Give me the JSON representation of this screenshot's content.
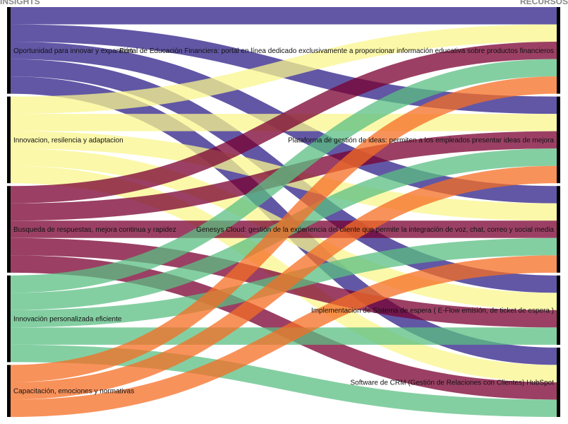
{
  "chart_data": {
    "type": "sankey",
    "headers": {
      "left": "INSIGHTS",
      "right": "RECURSOS"
    },
    "left_nodes": [
      {
        "name": "Oportunidad para innovar y expansión"
      },
      {
        "name": "Innovacion, resilencia y adaptacion"
      },
      {
        "name": "Busqueda de respuestas, mejora continua y rapidez"
      },
      {
        "name": "Innovación personalizada eficiente"
      },
      {
        "name": "Capacitación, emociones y normativas"
      }
    ],
    "right_nodes": [
      {
        "name": "Portal de Educación Financiera: portal en línea dedicado exclusivamente a proporcionar información educativa sobre productos financieros"
      },
      {
        "name": "Plataforma de gestión de ideas: permiten a los empleados presentar ideas de mejora"
      },
      {
        "name": "Genesys Cloud: gestión de la experiencia del cliente que permite la integración de voz, chat, correo y social media"
      },
      {
        "name": "Implementacion de Sistema de espera ( E-Flow emisión, de ticket de espera )"
      },
      {
        "name": "Software de CRM (Gestión de Relaciones con Clientes) HubSpot"
      }
    ],
    "links": [
      {
        "source": 0,
        "target": 0,
        "value": 1
      },
      {
        "source": 0,
        "target": 1,
        "value": 1
      },
      {
        "source": 0,
        "target": 2,
        "value": 1
      },
      {
        "source": 0,
        "target": 3,
        "value": 1
      },
      {
        "source": 0,
        "target": 4,
        "value": 1
      },
      {
        "source": 1,
        "target": 0,
        "value": 1
      },
      {
        "source": 1,
        "target": 1,
        "value": 1
      },
      {
        "source": 1,
        "target": 2,
        "value": 1
      },
      {
        "source": 1,
        "target": 3,
        "value": 1
      },
      {
        "source": 1,
        "target": 4,
        "value": 1
      },
      {
        "source": 2,
        "target": 0,
        "value": 1
      },
      {
        "source": 2,
        "target": 1,
        "value": 1
      },
      {
        "source": 2,
        "target": 2,
        "value": 1
      },
      {
        "source": 2,
        "target": 3,
        "value": 1
      },
      {
        "source": 2,
        "target": 4,
        "value": 1
      },
      {
        "source": 3,
        "target": 0,
        "value": 1
      },
      {
        "source": 3,
        "target": 1,
        "value": 1
      },
      {
        "source": 3,
        "target": 2,
        "value": 1
      },
      {
        "source": 3,
        "target": 3,
        "value": 1
      },
      {
        "source": 3,
        "target": 4,
        "value": 1
      },
      {
        "source": 4,
        "target": 0,
        "value": 1
      },
      {
        "source": 4,
        "target": 1,
        "value": 1
      },
      {
        "source": 4,
        "target": 2,
        "value": 1
      }
    ],
    "colors": [
      "#2e1f87",
      "#f9f58d",
      "#7a0030",
      "#5bbf83",
      "#f56d24"
    ],
    "node_color": "#000000",
    "header_color": "#888888"
  }
}
